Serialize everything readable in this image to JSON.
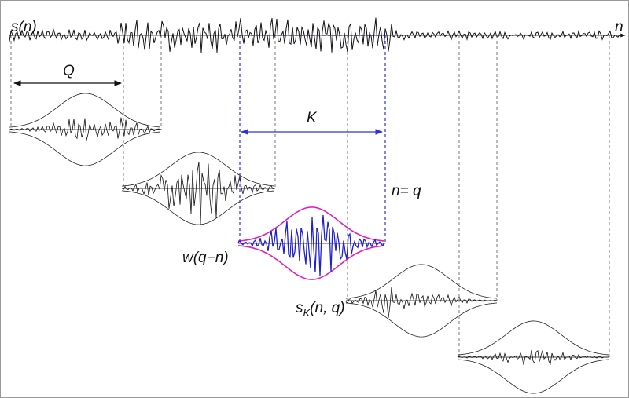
{
  "labels": {
    "signal": "s(n)",
    "time_axis": "n",
    "window_length_q": "Q",
    "window_length_k": "K",
    "window_position": "n= q",
    "window_function": "w(q−n)",
    "windowed_signal": {
      "base": "s",
      "subscript": "K",
      "argument": "(n, q)"
    }
  }
}
